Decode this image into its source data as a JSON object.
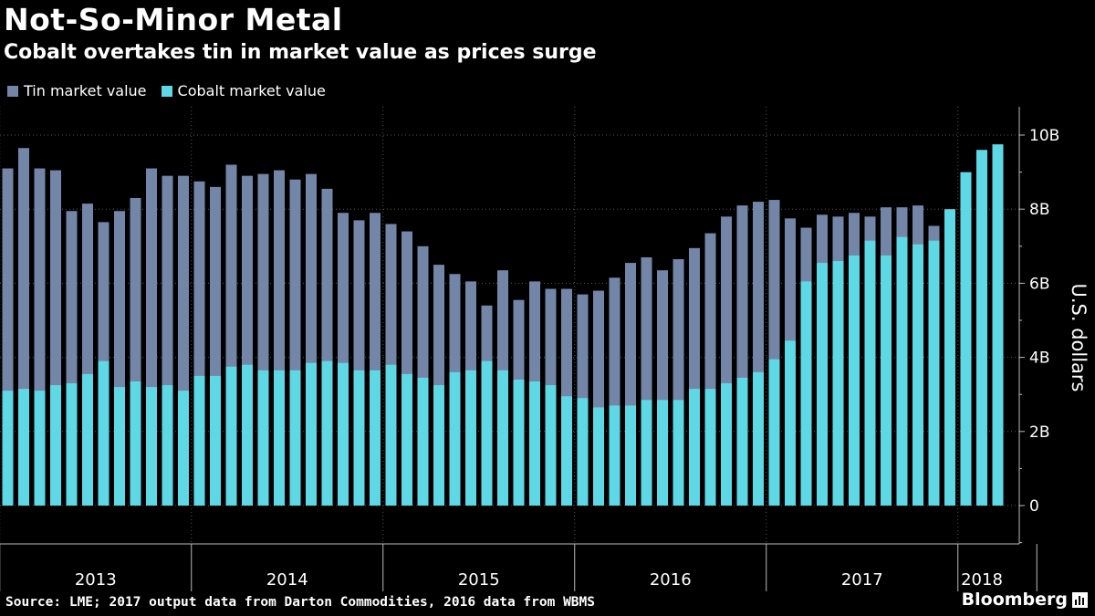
{
  "title": "Not-So-Minor Metal",
  "subtitle": "Cobalt overtakes tin in market value as prices surge",
  "legend": [
    {
      "label": "Tin market value",
      "color": "#7386a8"
    },
    {
      "label": "Cobalt market value",
      "color": "#5fd8e6"
    }
  ],
  "source": "Source: LME; 2017 output data from Darton Commodities, 2016 data from WBMS",
  "brand": "Bloomberg",
  "colors": {
    "background": "#000000",
    "tin": "#7386a8",
    "cobalt": "#5fd8e6",
    "grid": "#555555"
  },
  "chart_data": {
    "type": "bar",
    "stacked": false,
    "note": "Overlapping bars: tin and cobalt values each measured from zero; cobalt drawn in front of tin",
    "title": "Not-So-Minor Metal",
    "subtitle": "Cobalt overtakes tin in market value as prices surge",
    "xlabel": "",
    "ylabel": "U.S. dollars",
    "ylim": [
      -1.0,
      10.5
    ],
    "yunit": "billion USD",
    "yticks": [
      0,
      2,
      4,
      6,
      8,
      10
    ],
    "ytick_labels": [
      "0",
      "2B",
      "4B",
      "6B",
      "8B",
      "10B"
    ],
    "grid": true,
    "legend_position": "top-left",
    "x_periods": [
      "2013",
      "2014",
      "2015",
      "2016",
      "2017",
      "2018"
    ],
    "x_period_month_counts": [
      12,
      12,
      12,
      12,
      12,
      3
    ],
    "x": [
      "2013-01",
      "2013-02",
      "2013-03",
      "2013-04",
      "2013-05",
      "2013-06",
      "2013-07",
      "2013-08",
      "2013-09",
      "2013-10",
      "2013-11",
      "2013-12",
      "2014-01",
      "2014-02",
      "2014-03",
      "2014-04",
      "2014-05",
      "2014-06",
      "2014-07",
      "2014-08",
      "2014-09",
      "2014-10",
      "2014-11",
      "2014-12",
      "2015-01",
      "2015-02",
      "2015-03",
      "2015-04",
      "2015-05",
      "2015-06",
      "2015-07",
      "2015-08",
      "2015-09",
      "2015-10",
      "2015-11",
      "2015-12",
      "2016-01",
      "2016-02",
      "2016-03",
      "2016-04",
      "2016-05",
      "2016-06",
      "2016-07",
      "2016-08",
      "2016-09",
      "2016-10",
      "2016-11",
      "2016-12",
      "2017-01",
      "2017-02",
      "2017-03",
      "2017-04",
      "2017-05",
      "2017-06",
      "2017-07",
      "2017-08",
      "2017-09",
      "2017-10",
      "2017-11",
      "2017-12",
      "2018-01",
      "2018-02",
      "2018-03"
    ],
    "series": [
      {
        "name": "Tin market value",
        "values": [
          9.1,
          9.65,
          9.1,
          9.05,
          7.95,
          8.15,
          7.65,
          7.95,
          8.3,
          9.1,
          8.9,
          8.9,
          8.75,
          8.6,
          9.2,
          8.9,
          8.95,
          9.05,
          8.8,
          8.95,
          8.55,
          7.9,
          7.7,
          7.9,
          7.6,
          7.4,
          7.0,
          6.5,
          6.25,
          6.05,
          5.4,
          6.35,
          5.55,
          6.05,
          5.85,
          5.85,
          5.7,
          5.8,
          6.15,
          6.55,
          6.7,
          6.35,
          6.65,
          6.95,
          7.35,
          7.8,
          8.1,
          8.2,
          8.25,
          7.75,
          7.5,
          7.85,
          7.8,
          7.9,
          7.8,
          8.05,
          8.05,
          8.1,
          7.55,
          null,
          null,
          null,
          null
        ]
      },
      {
        "name": "Cobalt market value",
        "values": [
          3.1,
          3.15,
          3.1,
          3.25,
          3.3,
          3.55,
          3.9,
          3.2,
          3.35,
          3.2,
          3.25,
          3.1,
          3.5,
          3.5,
          3.75,
          3.8,
          3.65,
          3.65,
          3.65,
          3.85,
          3.9,
          3.85,
          3.65,
          3.65,
          3.8,
          3.55,
          3.45,
          3.25,
          3.6,
          3.65,
          3.9,
          3.65,
          3.4,
          3.35,
          3.25,
          2.95,
          2.9,
          2.65,
          2.7,
          2.7,
          2.85,
          2.85,
          2.85,
          3.15,
          3.15,
          3.3,
          3.45,
          3.6,
          3.95,
          4.45,
          6.05,
          6.55,
          6.6,
          6.75,
          7.15,
          6.75,
          7.25,
          7.05,
          7.15,
          8.0,
          9.0,
          9.6,
          9.75
        ]
      }
    ]
  }
}
